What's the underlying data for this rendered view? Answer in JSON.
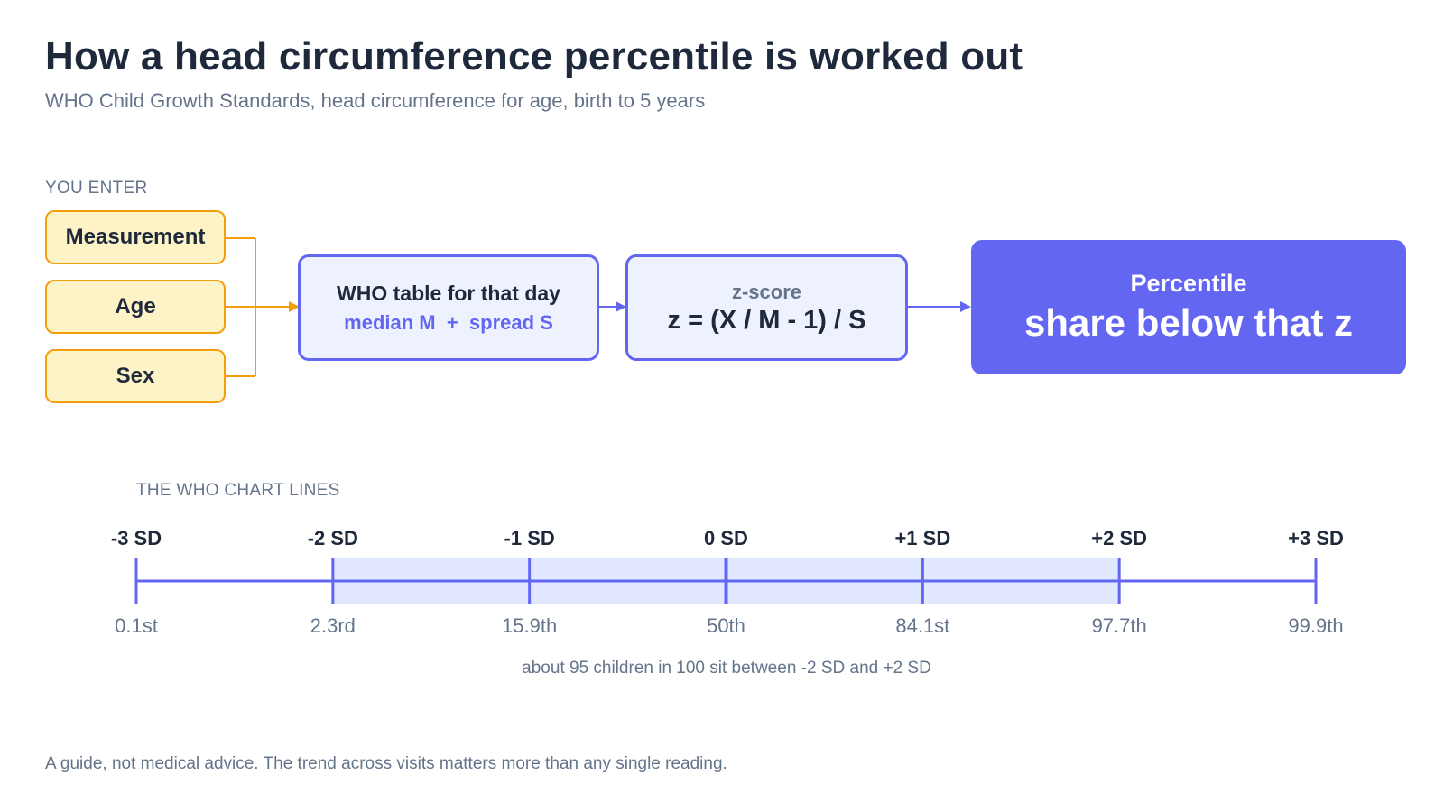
{
  "header": {
    "title": "How a head circumference percentile is worked out",
    "subtitle": "WHO Child Growth Standards, head circumference for age, birth to 5 years"
  },
  "inputs": {
    "section_label": "YOU ENTER",
    "items": [
      {
        "label": "Measurement"
      },
      {
        "label": "Age"
      },
      {
        "label": "Sex"
      }
    ]
  },
  "flow": {
    "lookup": {
      "title": "WHO table for that day",
      "detail": "median M  +  spread S"
    },
    "zscore": {
      "title": "z-score",
      "formula": "z = (X / M - 1) / S"
    },
    "result": {
      "title": "Percentile",
      "detail": "share below that z"
    }
  },
  "chart_lines": {
    "section_label": "THE WHO CHART LINES",
    "ticks": [
      {
        "sd": "-3 SD",
        "percentile": "0.1st"
      },
      {
        "sd": "-2 SD",
        "percentile": "2.3rd"
      },
      {
        "sd": "-1 SD",
        "percentile": "15.9th"
      },
      {
        "sd": "0 SD",
        "percentile": "50th"
      },
      {
        "sd": "+1 SD",
        "percentile": "84.1st"
      },
      {
        "sd": "+2 SD",
        "percentile": "97.7th"
      },
      {
        "sd": "+3 SD",
        "percentile": "99.9th"
      }
    ],
    "note": "about 95 children in 100 sit between -2 SD and +2 SD"
  },
  "footer": {
    "disclaimer": "A guide, not medical advice. The trend across visits matters more than any single reading."
  },
  "colors": {
    "input_fill": "#fef3c7",
    "input_border": "#f59e0b",
    "accent": "#6366f1",
    "box_fill": "#eef2ff",
    "band_fill": "#e0e7ff"
  }
}
